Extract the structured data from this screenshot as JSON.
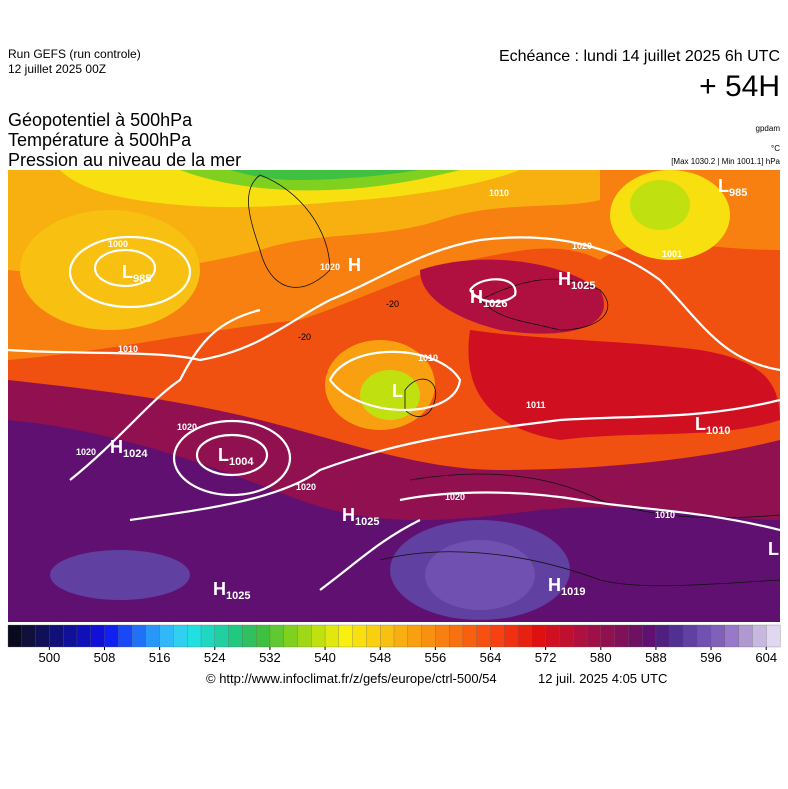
{
  "header": {
    "run": "Run GEFS (run controle)",
    "run_date": "12 juillet 2025 00Z",
    "valid": "Echéance : lundi 14 juillet 2025 6h UTC",
    "lead": "+ 54H",
    "titles": [
      "Géopotentiel à 500hPa",
      "Température à 500hPa",
      "Pression au niveau de la mer"
    ],
    "units": [
      "gpdam",
      "°C",
      "[Max 1030.2 | Min 1001.1] hPa"
    ]
  },
  "map": {
    "centers": [
      {
        "letter": "L",
        "value": 985
      },
      {
        "letter": "L",
        "value": 985
      },
      {
        "letter": "H"
      },
      {
        "letter": "H",
        "value": 1026
      },
      {
        "letter": "H",
        "value": 1025
      },
      {
        "letter": "L"
      },
      {
        "letter": "L",
        "value": 1004
      },
      {
        "letter": "H",
        "value": 1024
      },
      {
        "letter": "H",
        "value": 1025
      },
      {
        "letter": "H",
        "value": 1025
      },
      {
        "letter": "H",
        "value": 1019
      },
      {
        "letter": "L",
        "value": 1010
      },
      {
        "letter": "L"
      }
    ],
    "isobar_labels": [
      1010,
      1020,
      1020,
      1010,
      1010,
      1020,
      1020,
      1010,
      1020,
      1020,
      1000,
      1001,
      1011
    ],
    "temperature_labels": [
      -20,
      -20
    ]
  },
  "colorbar": {
    "range": [
      494,
      606
    ],
    "ticks": [
      500,
      508,
      516,
      524,
      532,
      540,
      548,
      556,
      564,
      572,
      580,
      588,
      596,
      604
    ],
    "colors": [
      "#0a0a1e",
      "#10103a",
      "#101058",
      "#101078",
      "#101098",
      "#1010b8",
      "#1010d8",
      "#1020f0",
      "#1848f8",
      "#2070f8",
      "#2898f8",
      "#30b8f8",
      "#30d0f0",
      "#20e0e0",
      "#20d8c0",
      "#20d0a0",
      "#20c880",
      "#30c060",
      "#40c040",
      "#60c830",
      "#80d020",
      "#a0d818",
      "#c0e010",
      "#e0e810",
      "#f8f010",
      "#f8e010",
      "#f8d010",
      "#f8c010",
      "#f8b010",
      "#f8a010",
      "#f89010",
      "#f88010",
      "#f87010",
      "#f86010",
      "#f85010",
      "#f84010",
      "#f03010",
      "#e82010",
      "#e01010",
      "#d01020",
      "#c01030",
      "#b01040",
      "#a01048",
      "#901050",
      "#801058",
      "#701060",
      "#601070",
      "#502080",
      "#503090",
      "#6040a0",
      "#7050b0",
      "#8060b8",
      "#9878c8",
      "#b098d0",
      "#c8b8e0",
      "#e0d8f0"
    ]
  },
  "footer": {
    "source": "© http://www.infoclimat.fr/z/gefs/europe/ctrl-500/54",
    "generated": "12 juil. 2025  4:05 UTC"
  }
}
